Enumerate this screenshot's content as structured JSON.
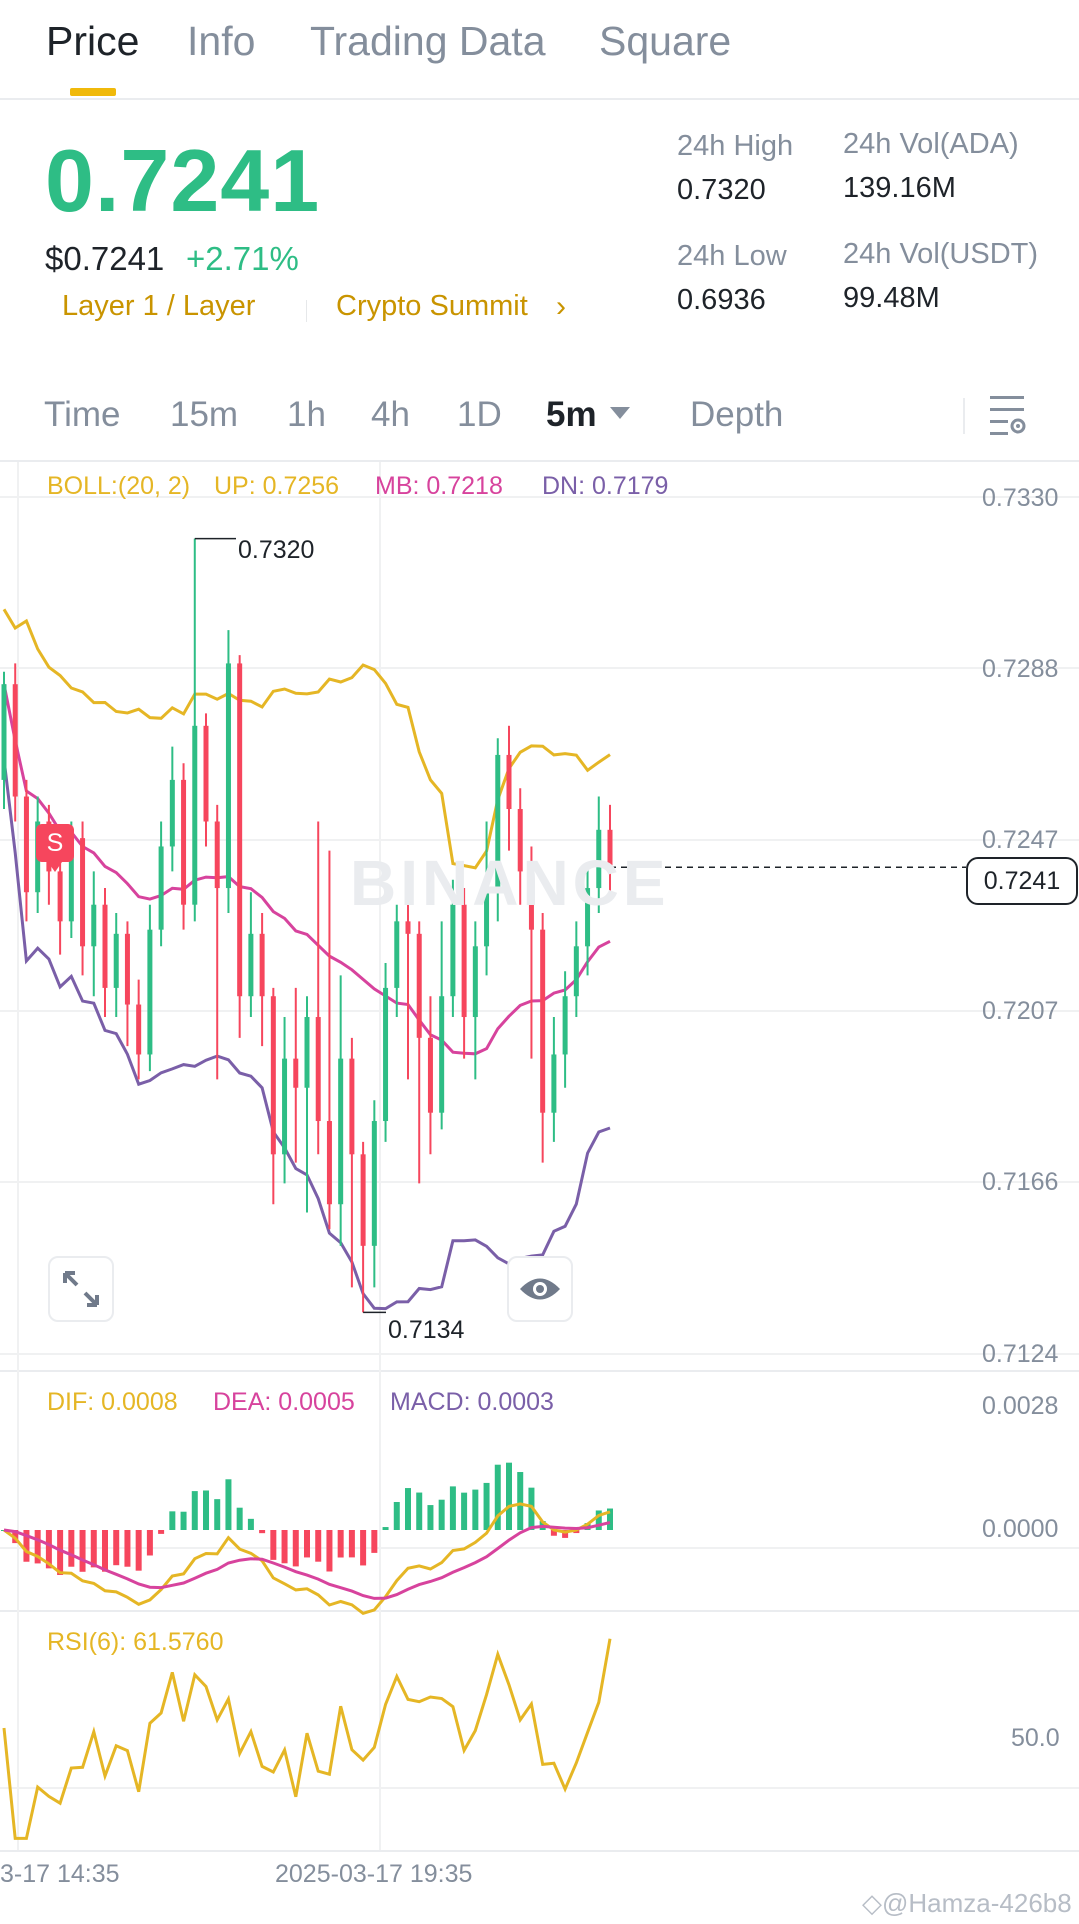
{
  "tabs": [
    {
      "label": "Price",
      "active": true
    },
    {
      "label": "Info"
    },
    {
      "label": "Trading Data"
    },
    {
      "label": "Square"
    }
  ],
  "ticker": {
    "last_price": "0.7241",
    "usd_price": "$0.7241",
    "change": "+2.71%",
    "tag_category": "Layer 1 / Layer",
    "tag_event": "Crypto Summit",
    "high_label": "24h High",
    "high_value": "0.7320",
    "low_label": "24h Low",
    "low_value": "0.6936",
    "vol_base_label": "24h Vol(ADA)",
    "vol_base_value": "139.16M",
    "vol_quote_label": "24h Vol(USDT)",
    "vol_quote_value": "99.48M"
  },
  "intervals": {
    "items": [
      "Time",
      "15m",
      "1h",
      "4h",
      "1D"
    ],
    "selected": "5m",
    "depth": "Depth"
  },
  "indicators": {
    "boll": {
      "name": "BOLL:(20, 2)",
      "up": "UP: 0.7256",
      "mb": "MB: 0.7218",
      "dn": "DN: 0.7179"
    },
    "macd": {
      "dif": "DIF: 0.0008",
      "dea": "DEA: 0.0005",
      "macd": "MACD: 0.0003"
    },
    "rsi": {
      "label": "RSI(6): 61.5760"
    }
  },
  "colors": {
    "up": "#2ebd85",
    "down": "#f6465d",
    "boll_up": "#e5b625",
    "boll_mb": "#d7439d",
    "boll_dn": "#7a5fa8",
    "accent": "#f0b90b"
  },
  "chart_data": {
    "type": "candlestick",
    "price_axis": [
      "0.7330",
      "0.7288",
      "0.7247",
      "0.7207",
      "0.7166",
      "0.7124"
    ],
    "macd_axis": [
      "0.0028",
      "0.0000"
    ],
    "rsi_axis": [
      "50.0"
    ],
    "time_axis": [
      "3-17 14:35",
      "2025-03-17 19:35"
    ],
    "current_price": "0.7241",
    "high_marker": "0.7320",
    "low_marker": "0.7134",
    "marker_sell": "S",
    "watermark": "BINANCE",
    "candles": [
      {
        "o": 0.7262,
        "c": 0.7285,
        "h": 0.7288,
        "l": 0.7255
      },
      {
        "o": 0.7285,
        "c": 0.7258,
        "h": 0.729,
        "l": 0.7252
      },
      {
        "o": 0.7258,
        "c": 0.7235,
        "h": 0.7262,
        "l": 0.7228
      },
      {
        "o": 0.7235,
        "c": 0.7252,
        "h": 0.7258,
        "l": 0.723
      },
      {
        "o": 0.7252,
        "c": 0.724,
        "h": 0.7256,
        "l": 0.7232
      },
      {
        "o": 0.724,
        "c": 0.7228,
        "h": 0.7245,
        "l": 0.722
      },
      {
        "o": 0.7228,
        "c": 0.7248,
        "h": 0.7252,
        "l": 0.7224
      },
      {
        "o": 0.7248,
        "c": 0.7222,
        "h": 0.7252,
        "l": 0.7215
      },
      {
        "o": 0.7222,
        "c": 0.7232,
        "h": 0.724,
        "l": 0.721
      },
      {
        "o": 0.7232,
        "c": 0.7212,
        "h": 0.7236,
        "l": 0.7205
      },
      {
        "o": 0.7212,
        "c": 0.7225,
        "h": 0.723,
        "l": 0.7205
      },
      {
        "o": 0.7225,
        "c": 0.7208,
        "h": 0.7228,
        "l": 0.7198
      },
      {
        "o": 0.7208,
        "c": 0.7196,
        "h": 0.7214,
        "l": 0.719
      },
      {
        "o": 0.7196,
        "c": 0.7226,
        "h": 0.7232,
        "l": 0.7192
      },
      {
        "o": 0.7226,
        "c": 0.7246,
        "h": 0.7252,
        "l": 0.7222
      },
      {
        "o": 0.7246,
        "c": 0.7262,
        "h": 0.727,
        "l": 0.724
      },
      {
        "o": 0.7262,
        "c": 0.7232,
        "h": 0.7266,
        "l": 0.7226
      },
      {
        "o": 0.7232,
        "c": 0.7275,
        "h": 0.732,
        "l": 0.7228
      },
      {
        "o": 0.7275,
        "c": 0.7252,
        "h": 0.7278,
        "l": 0.7246
      },
      {
        "o": 0.7252,
        "c": 0.7236,
        "h": 0.7256,
        "l": 0.719
      },
      {
        "o": 0.7236,
        "c": 0.729,
        "h": 0.7298,
        "l": 0.723
      },
      {
        "o": 0.729,
        "c": 0.721,
        "h": 0.7292,
        "l": 0.72
      },
      {
        "o": 0.721,
        "c": 0.7225,
        "h": 0.7235,
        "l": 0.7205
      },
      {
        "o": 0.7225,
        "c": 0.721,
        "h": 0.723,
        "l": 0.7198
      },
      {
        "o": 0.721,
        "c": 0.7172,
        "h": 0.7212,
        "l": 0.716
      },
      {
        "o": 0.7172,
        "c": 0.7195,
        "h": 0.7205,
        "l": 0.7165
      },
      {
        "o": 0.7195,
        "c": 0.7188,
        "h": 0.7212,
        "l": 0.717
      },
      {
        "o": 0.7188,
        "c": 0.7205,
        "h": 0.721,
        "l": 0.7158
      },
      {
        "o": 0.7205,
        "c": 0.718,
        "h": 0.7252,
        "l": 0.7172
      },
      {
        "o": 0.718,
        "c": 0.716,
        "h": 0.7245,
        "l": 0.7154
      },
      {
        "o": 0.716,
        "c": 0.7195,
        "h": 0.7215,
        "l": 0.715
      },
      {
        "o": 0.7195,
        "c": 0.7172,
        "h": 0.72,
        "l": 0.714
      },
      {
        "o": 0.7172,
        "c": 0.715,
        "h": 0.7175,
        "l": 0.7134
      },
      {
        "o": 0.715,
        "c": 0.718,
        "h": 0.7185,
        "l": 0.714
      },
      {
        "o": 0.718,
        "c": 0.7212,
        "h": 0.7218,
        "l": 0.7175
      },
      {
        "o": 0.7212,
        "c": 0.7228,
        "h": 0.7232,
        "l": 0.7205
      },
      {
        "o": 0.7228,
        "c": 0.7225,
        "h": 0.7236,
        "l": 0.719
      },
      {
        "o": 0.7225,
        "c": 0.72,
        "h": 0.7228,
        "l": 0.7165
      },
      {
        "o": 0.72,
        "c": 0.7182,
        "h": 0.721,
        "l": 0.7172
      },
      {
        "o": 0.7182,
        "c": 0.721,
        "h": 0.7228,
        "l": 0.7178
      },
      {
        "o": 0.721,
        "c": 0.7232,
        "h": 0.7238,
        "l": 0.7205
      },
      {
        "o": 0.7232,
        "c": 0.7205,
        "h": 0.7236,
        "l": 0.7195
      },
      {
        "o": 0.7205,
        "c": 0.7222,
        "h": 0.7228,
        "l": 0.719
      },
      {
        "o": 0.7222,
        "c": 0.7235,
        "h": 0.7252,
        "l": 0.7215
      },
      {
        "o": 0.7235,
        "c": 0.7268,
        "h": 0.7272,
        "l": 0.7228
      },
      {
        "o": 0.7268,
        "c": 0.7255,
        "h": 0.7275,
        "l": 0.7245
      },
      {
        "o": 0.7255,
        "c": 0.724,
        "h": 0.726,
        "l": 0.7232
      },
      {
        "o": 0.724,
        "c": 0.7226,
        "h": 0.7246,
        "l": 0.7195
      },
      {
        "o": 0.7226,
        "c": 0.7182,
        "h": 0.723,
        "l": 0.717
      },
      {
        "o": 0.7182,
        "c": 0.7196,
        "h": 0.7205,
        "l": 0.7175
      },
      {
        "o": 0.7196,
        "c": 0.721,
        "h": 0.7216,
        "l": 0.7188
      },
      {
        "o": 0.721,
        "c": 0.7222,
        "h": 0.7228,
        "l": 0.7205
      },
      {
        "o": 0.7222,
        "c": 0.7236,
        "h": 0.7242,
        "l": 0.7215
      },
      {
        "o": 0.7236,
        "c": 0.725,
        "h": 0.7258,
        "l": 0.723
      },
      {
        "o": 0.725,
        "c": 0.724,
        "h": 0.7256,
        "l": 0.7234
      }
    ]
  }
}
